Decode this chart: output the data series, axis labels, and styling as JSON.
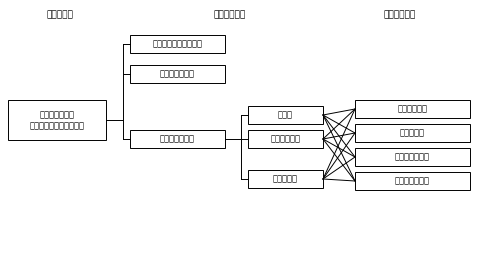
{
  "title_left": "（原　液）",
  "title_mid": "（発泡方法）",
  "title_right": "（成形方法）",
  "box_source": "ポリオール成分\nポリイソシアネート成分",
  "box_hm": "ハンドミキシング発泡",
  "box_si": "簡　易　発　泡",
  "box_mk": "機　械　発　泡",
  "box_ny": "注入法",
  "box_fr": "フロス注入法",
  "box_sp": "スプレー法",
  "box_mo": "モールド成形",
  "box_sl": "スラブ成形",
  "box_la": "ラミネート成形",
  "box_ge": "現　場　発　泡",
  "bg_color": "#ffffff",
  "box_color": "#ffffff",
  "line_color": "#000000",
  "text_color": "#000000",
  "fontsize": 6.5
}
